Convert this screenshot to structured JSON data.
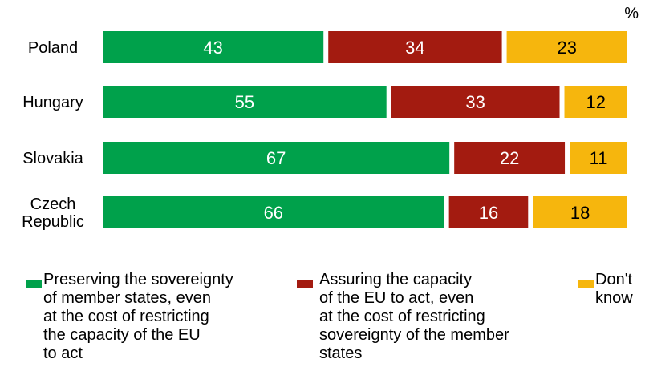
{
  "chart_data": {
    "type": "bar",
    "orientation": "horizontal",
    "stacked": true,
    "unit_label": "%",
    "categories": [
      "Poland",
      "Hungary",
      "Slovakia",
      "Czech\nRepublic"
    ],
    "series": [
      {
        "name": "Preserving the sovereignty\nof member states, even\nat the cost of restricting\nthe capacity of the EU\nto act",
        "color": "#00a14b",
        "values": [
          43,
          55,
          67,
          66
        ]
      },
      {
        "name": "Assuring the capacity\nof the EU to act, even\nat the cost of restricting\nsovereignty of the member\nstates",
        "color": "#a31b10",
        "values": [
          34,
          33,
          22,
          16
        ]
      },
      {
        "name": "Don't\nknow",
        "color": "#f6b60d",
        "values": [
          23,
          12,
          11,
          18
        ]
      }
    ],
    "xlim": [
      0,
      100
    ],
    "grid": false,
    "legend_position": "bottom"
  }
}
